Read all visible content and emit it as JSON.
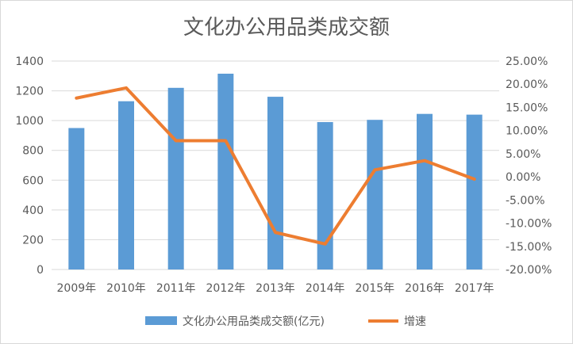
{
  "chart_data": {
    "type": "bar",
    "title": "文化办公用品类成交额",
    "categories": [
      "2009年",
      "2010年",
      "2011年",
      "2012年",
      "2013年",
      "2014年",
      "2015年",
      "2016年",
      "2017年"
    ],
    "series": [
      {
        "name": "文化办公用品类成交额(亿元)",
        "type": "bar",
        "axis": "left",
        "color": "#5b9bd5",
        "values": [
          950,
          1130,
          1220,
          1315,
          1160,
          990,
          1005,
          1045,
          1040
        ]
      },
      {
        "name": "增速",
        "type": "line",
        "axis": "right",
        "color": "#ed7d31",
        "values": [
          17.0,
          19.2,
          7.8,
          7.8,
          -12.0,
          -14.5,
          1.5,
          3.5,
          -0.5
        ]
      }
    ],
    "y_left": {
      "min": 0,
      "max": 1400,
      "step": 200,
      "ticks": [
        "0",
        "200",
        "400",
        "600",
        "800",
        "1000",
        "1200",
        "1400"
      ]
    },
    "y_right": {
      "min": -20,
      "max": 25,
      "step": 5,
      "ticks": [
        "-20.00%",
        "-15.00%",
        "-10.00%",
        "-5.00%",
        "0.00%",
        "5.00%",
        "10.00%",
        "15.00%",
        "20.00%",
        "25.00%"
      ]
    },
    "grid": true,
    "legend_position": "bottom"
  }
}
